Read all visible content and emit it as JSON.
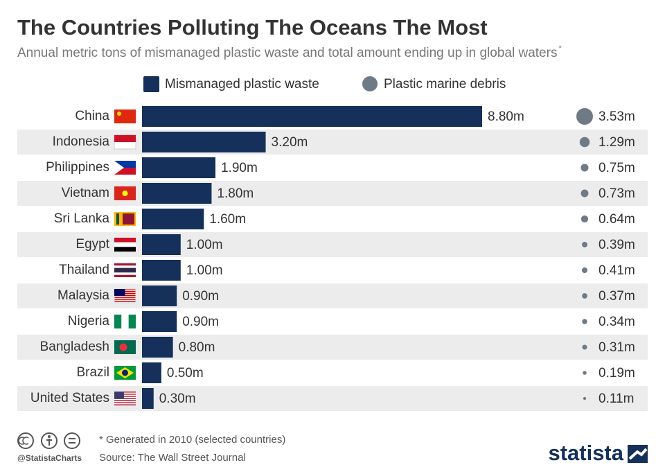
{
  "chart_data": {
    "type": "bar",
    "orientation": "horizontal",
    "title": "The Countries Polluting The Oceans The Most",
    "subtitle": "Annual metric tons of mismanaged plastic waste and total amount ending up in global waters",
    "subtitle_note": "*",
    "categories": [
      "China",
      "Indonesia",
      "Philippines",
      "Vietnam",
      "Sri Lanka",
      "Egypt",
      "Thailand",
      "Malaysia",
      "Nigeria",
      "Bangladesh",
      "Brazil",
      "United States"
    ],
    "series": [
      {
        "name": "Mismanaged plastic waste",
        "color": "#15305a",
        "marker": "bar",
        "values": [
          8.8,
          3.2,
          1.9,
          1.8,
          1.6,
          1.0,
          1.0,
          0.9,
          0.9,
          0.8,
          0.5,
          0.3
        ],
        "value_labels": [
          "8.80m",
          "3.20m",
          "1.90m",
          "1.80m",
          "1.60m",
          "1.00m",
          "1.00m",
          "0.90m",
          "0.90m",
          "0.80m",
          "0.50m",
          "0.30m"
        ]
      },
      {
        "name": "Plastic marine debris",
        "color": "#6e7a85",
        "marker": "circle",
        "values": [
          3.53,
          1.29,
          0.75,
          0.73,
          0.64,
          0.39,
          0.41,
          0.37,
          0.34,
          0.31,
          0.19,
          0.11
        ],
        "value_labels": [
          "3.53m",
          "1.29m",
          "0.75m",
          "0.73m",
          "0.64m",
          "0.39m",
          "0.41m",
          "0.37m",
          "0.34m",
          "0.31m",
          "0.19m",
          "0.11m"
        ]
      }
    ]
  },
  "footer": {
    "note": "* Generated in 2010 (selected countries)",
    "source": "Source: The Wall Street Journal",
    "handle": "@StatistaCharts",
    "brand": "statista"
  }
}
